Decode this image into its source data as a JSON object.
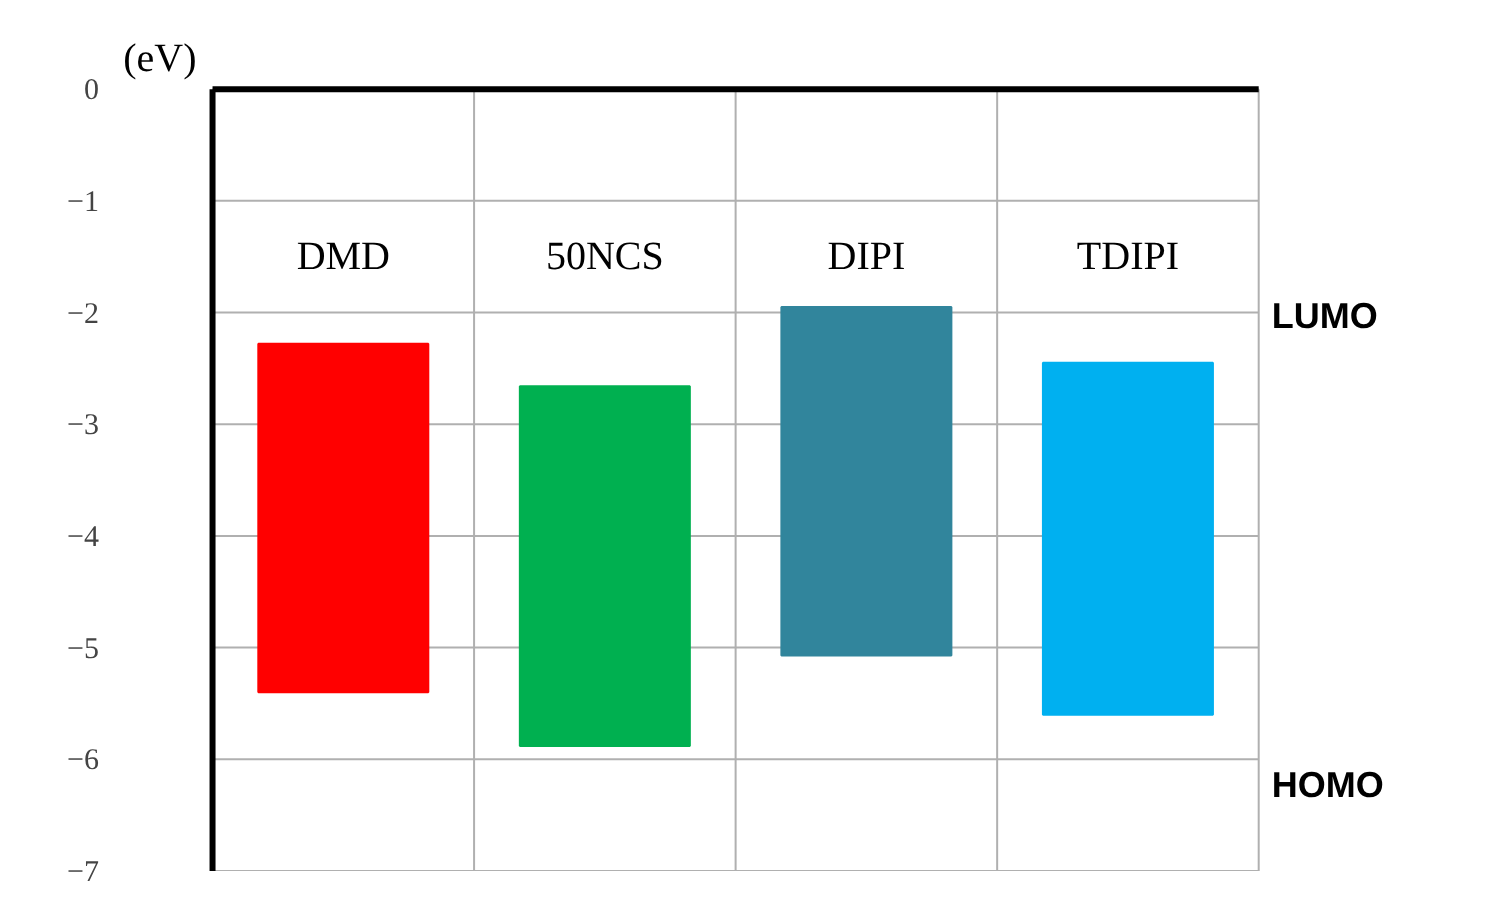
{
  "chart_data": {
    "type": "bar",
    "ylabel": "(eV)",
    "categories": [
      "DMD",
      "50NCS",
      "DIPI",
      "TDIPI"
    ],
    "base": [
      -5.4,
      -5.88,
      -5.07,
      -5.6
    ],
    "values": [
      3.12,
      3.22,
      3.12,
      3.15
    ],
    "colors": [
      "#ff0000",
      "#00b050",
      "#31859c",
      "#00b0f0"
    ],
    "ylim": [
      -7,
      0
    ],
    "yticks": [
      0,
      -1,
      -2,
      -3,
      -4,
      -5,
      -6,
      -7
    ],
    "grid": true,
    "annotations": [
      "LUMO",
      "HOMO"
    ]
  }
}
